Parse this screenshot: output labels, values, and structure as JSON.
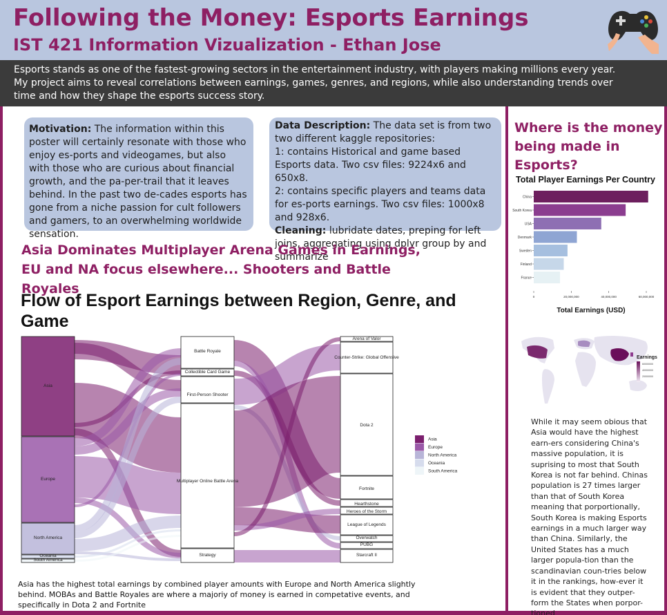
{
  "header": {
    "title": "Following the Money: Esports Earnings",
    "subtitle": "IST 421 Information Vizualization - Ethan Jose"
  },
  "intro": {
    "lines": [
      "Esports stands as one of the fastest-growing sectors in the entertainment industry, with players making millions every year.",
      "My project aims to reveal correlations between earnings, games, genres, and regions, while also understanding trends over",
      "time and how they shape the esports success story."
    ]
  },
  "motivation": {
    "label": "Motivation:",
    "text": " The information within this poster will certainly resonate with those who enjoy es-ports and videogames, but also with those who are curious about financial growth, and the pa-per-trail that it leaves behind. In the past two de-cades esports has gone from a niche passion for cult followers and gamers, to an overwhelming worldwide sensation."
  },
  "data_description": {
    "label": "Data Description:",
    "text": " The data set is from two two different kaggle repositories:",
    "item1": "1: contains Historical and game based Esports data. Two csv files: 9224x6 and 650x8.",
    "item2": "2: contains specific players and teams data for es-ports earnings. Two csv files: 1000x8 and 928x6.",
    "cleaning_label": "Cleaning:",
    "cleaning_text": " lubridate dates, preping for left joins, aggregating using dplyr group by and summarize"
  },
  "asia_heading": "Asia Dominates Multiplayer Arena Games in Earnings, EU and NA focus elsewhere... Shooters and Battle Royales",
  "sankey": {
    "title": "Flow of Esport Earnings between Region, Genre, and Game",
    "regions": [
      "Asia",
      "Europe",
      "North America",
      "Oceania",
      "South America"
    ],
    "genres": [
      "Battle Royale",
      "Collectible Card Game",
      "First-Person Shooter",
      "Multiplayer Online Battle Arena",
      "Strategy"
    ],
    "games": [
      "Arena of Valor",
      "Counter-Strike: Global Offensive",
      "Dota 2",
      "Fortnite",
      "Hearthstone",
      "Heroes of the Storm",
      "League of Legends",
      "Overwatch",
      "PUBG",
      "Starcraft II"
    ],
    "legend": [
      "Asia",
      "Europe",
      "North America",
      "Oceania",
      "South America"
    ],
    "colors": [
      "#7b1f6e",
      "#9a59a8",
      "#b8b5d8",
      "#d6dced",
      "#eef5f8"
    ]
  },
  "caption": "Asia has the highest total earnings by combined player amounts with Europe and North America slightly behind. MOBAs and Battle Royales are where a majoriy of money is earned in competative events, and specifically in Dota 2 and Fortnite",
  "money_heading": "Where is the money being made in Esports?",
  "chart_data": {
    "type": "bar",
    "orientation": "horizontal",
    "title": "Total Player Earnings Per Country",
    "xlabel": "Total Earnings (USD)",
    "ylabel": "",
    "categories": [
      "China",
      "South Korea",
      "USA",
      "Denmark",
      "Sweden",
      "Finland",
      "France"
    ],
    "values": [
      61000000,
      49000000,
      36000000,
      23000000,
      18000000,
      16000000,
      14000000
    ],
    "xlim": [
      0,
      60000000
    ],
    "xticks": [
      "0",
      "20,000,000",
      "40,000,000",
      "60,000,000"
    ],
    "colors": [
      "#6d1f5e",
      "#8b3d8f",
      "#8e6fb3",
      "#8fa5d3",
      "#a6bfdf",
      "#c6d7e9",
      "#e6f1f4"
    ]
  },
  "map": {
    "legend_title": "Earnings",
    "legend_ticks": [
      "60000000",
      "40000000",
      "20000000"
    ]
  },
  "right_text": "While it may seem obious that Asia would have the highest earn-ers considering China's massive population, it is suprising to most that South Korea is not far behind. Chinas population is 27 times larger than that of South Korea meaning that porportionally, South Korea is making Esports earnings in a much larger way than China. Similarly, the United States has a much larger popula-tion than the scandinavian coun-tries below it in the rankings, how-ever it is evident that they outper-form the States when porpor-tioned"
}
